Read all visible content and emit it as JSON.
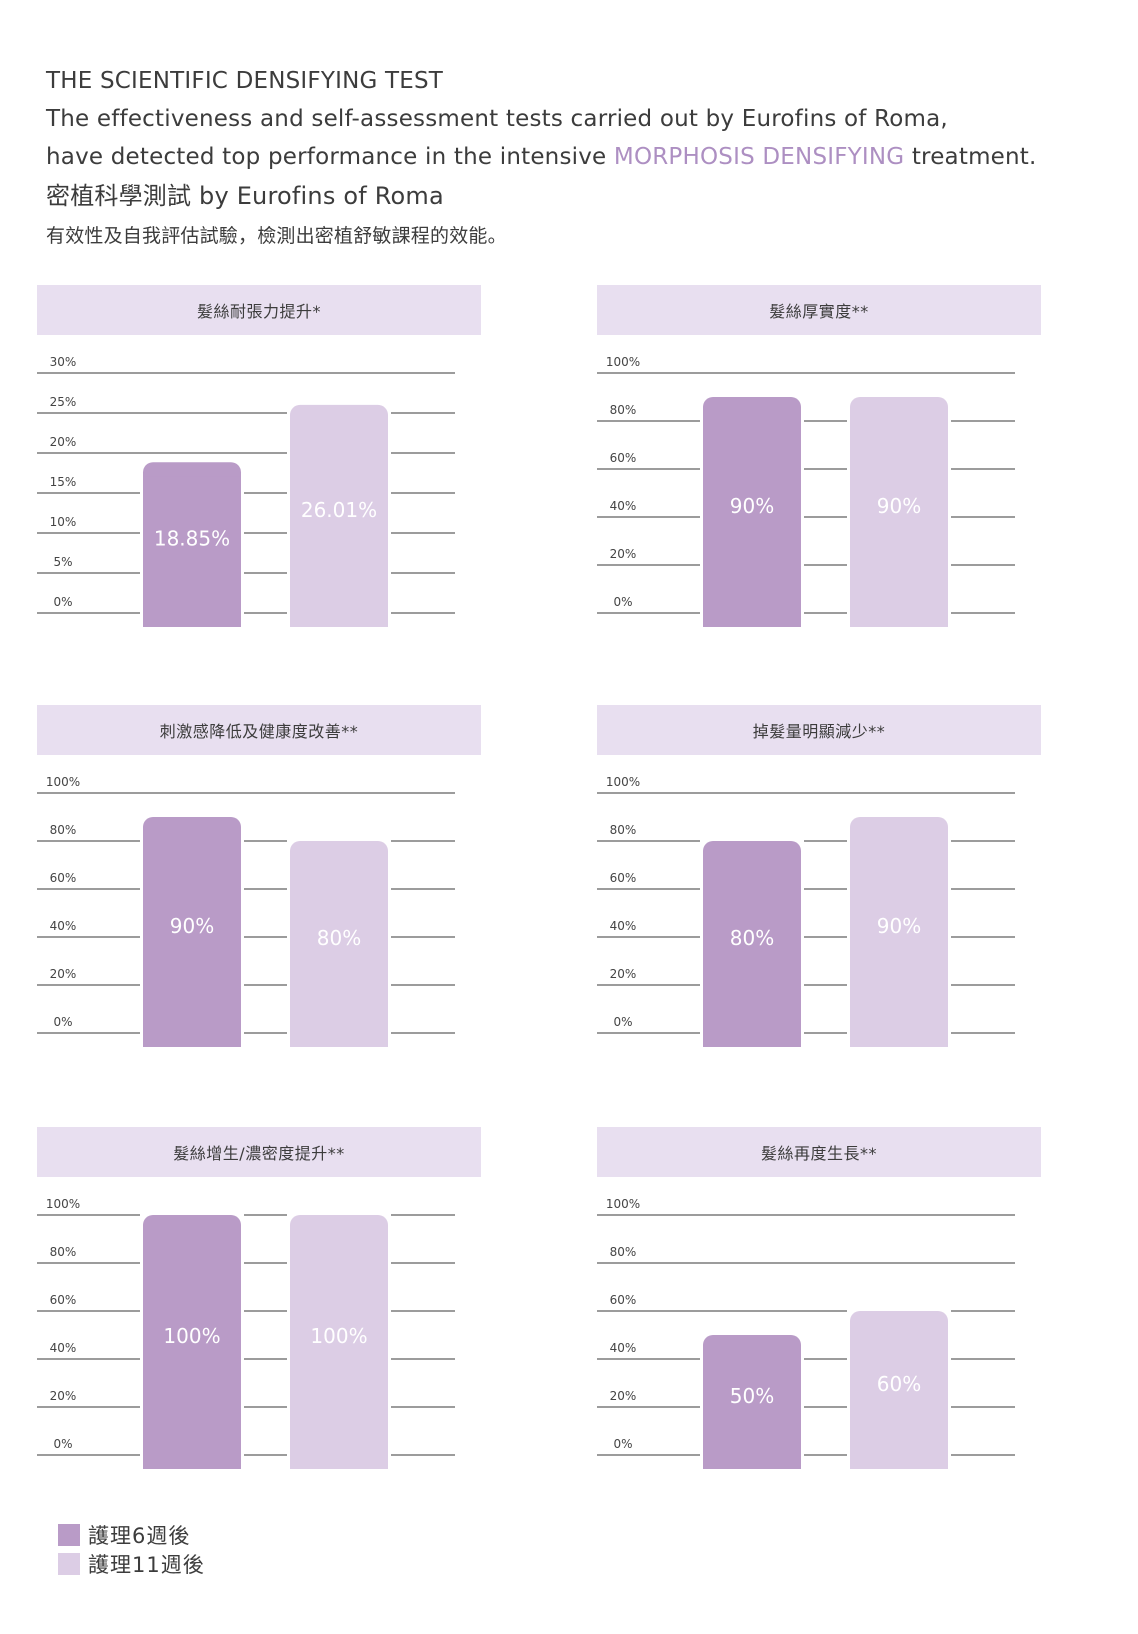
{
  "header": {
    "title": "THE SCIENTIFIC DENSIFYING TEST",
    "line1": "The effectiveness and self-assessment tests carried out by Eurofins of Roma,",
    "line2_pre": "have detected top performance in the intensive ",
    "line2_accent": "MORPHOSIS DENSIFYING",
    "line2_post": " treatment.",
    "zh_title": "密植科學測試 by Eurofins of Roma",
    "zh_sub": "有效性及自我評估試驗，檢測出密植舒敏課程的效能。"
  },
  "colors": {
    "series_6w": "#b99bc7",
    "series_11w": "#dccde5",
    "title_band": "#e8dff0",
    "accent_text": "#ad8fc2",
    "grid": "#3a3a3a"
  },
  "legend": [
    {
      "label": "護理6週後",
      "color": "#b99bc7"
    },
    {
      "label": "護理11週後",
      "color": "#dccde5"
    }
  ],
  "chart_data": [
    {
      "type": "bar",
      "title": "髮絲耐張力提升*",
      "categories": [
        "護理6週後",
        "護理11週後"
      ],
      "values": [
        18.85,
        26.01
      ],
      "labels": [
        "18.85%",
        "26.01%"
      ],
      "ylim": [
        0,
        30
      ],
      "yticks": [
        0,
        5,
        10,
        15,
        20,
        25,
        30
      ],
      "ytick_labels": [
        "0%",
        "5%",
        "10%",
        "15%",
        "20%",
        "25%",
        "30%"
      ],
      "grid": true
    },
    {
      "type": "bar",
      "title": "髮絲厚實度**",
      "categories": [
        "護理6週後",
        "護理11週後"
      ],
      "values": [
        90,
        90
      ],
      "labels": [
        "90%",
        "90%"
      ],
      "ylim": [
        0,
        100
      ],
      "yticks": [
        0,
        20,
        40,
        60,
        80,
        100
      ],
      "ytick_labels": [
        "0%",
        "20%",
        "40%",
        "60%",
        "80%",
        "100%"
      ],
      "grid": true
    },
    {
      "type": "bar",
      "title": "刺激感降低及健康度改善**",
      "categories": [
        "護理6週後",
        "護理11週後"
      ],
      "values": [
        90,
        80
      ],
      "labels": [
        "90%",
        "80%"
      ],
      "ylim": [
        0,
        100
      ],
      "yticks": [
        0,
        20,
        40,
        60,
        80,
        100
      ],
      "ytick_labels": [
        "0%",
        "20%",
        "40%",
        "60%",
        "80%",
        "100%"
      ],
      "grid": true
    },
    {
      "type": "bar",
      "title": "掉髮量明顯減少**",
      "categories": [
        "護理6週後",
        "護理11週後"
      ],
      "values": [
        80,
        90
      ],
      "labels": [
        "80%",
        "90%"
      ],
      "ylim": [
        0,
        100
      ],
      "yticks": [
        0,
        20,
        40,
        60,
        80,
        100
      ],
      "ytick_labels": [
        "0%",
        "20%",
        "40%",
        "60%",
        "80%",
        "100%"
      ],
      "grid": true
    },
    {
      "type": "bar",
      "title": "髮絲增生/濃密度提升**",
      "categories": [
        "護理6週後",
        "護理11週後"
      ],
      "values": [
        100,
        100
      ],
      "labels": [
        "100%",
        "100%"
      ],
      "ylim": [
        0,
        100
      ],
      "yticks": [
        0,
        20,
        40,
        60,
        80,
        100
      ],
      "ytick_labels": [
        "0%",
        "20%",
        "40%",
        "60%",
        "80%",
        "100%"
      ],
      "grid": true
    },
    {
      "type": "bar",
      "title": "髮絲再度生長**",
      "categories": [
        "護理6週後",
        "護理11週後"
      ],
      "values": [
        50,
        60
      ],
      "labels": [
        "50%",
        "60%"
      ],
      "ylim": [
        0,
        100
      ],
      "yticks": [
        0,
        20,
        40,
        60,
        80,
        100
      ],
      "ytick_labels": [
        "0%",
        "20%",
        "40%",
        "60%",
        "80%",
        "100%"
      ],
      "grid": true
    }
  ]
}
